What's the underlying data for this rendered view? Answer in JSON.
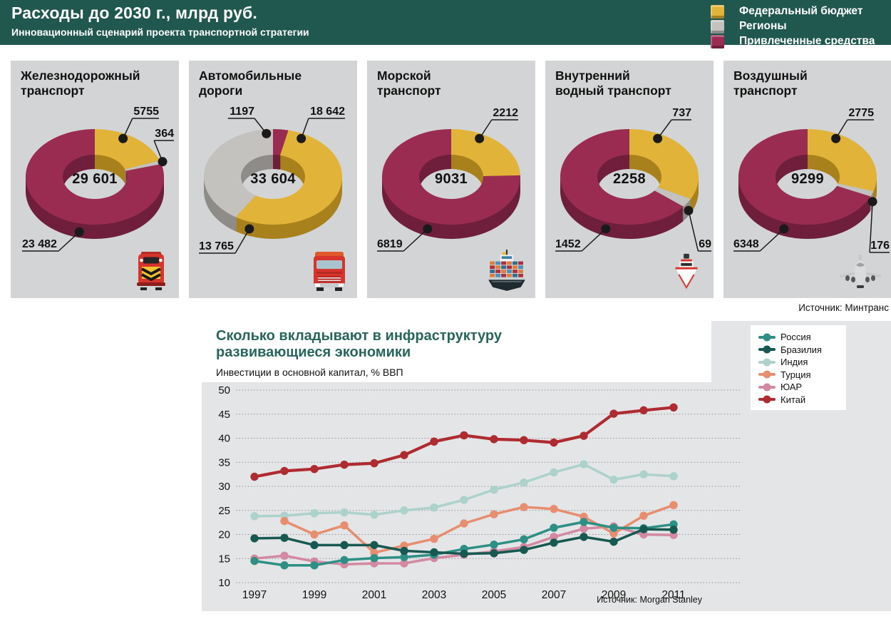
{
  "header": {
    "title": "Расходы до 2030 г., млрд руб.",
    "subtitle": "Инновационный сценарий проекта транспортной стратегии",
    "legend": [
      {
        "key": "federal-budget",
        "label": "Федеральный бюджет",
        "color": "#E2B339"
      },
      {
        "key": "regions",
        "label": "Регионы",
        "color": "#C3C2BE"
      },
      {
        "key": "attracted-funds",
        "label": "Привлеченные средства",
        "color": "#9A2C51"
      }
    ]
  },
  "sources": {
    "top": "Источник: Минтранс",
    "bottom": "Источник: Morgan Stanley"
  },
  "panels": [
    {
      "title_lines": [
        "Железнодорожный",
        "транспорт"
      ],
      "icon": "train-icon",
      "chart": 0
    },
    {
      "title_lines": [
        "Автомобильные",
        "дороги"
      ],
      "icon": "truck-icon",
      "chart": 1
    },
    {
      "title_lines": [
        "Морской",
        "транспорт"
      ],
      "icon": "ship-icon",
      "chart": 2
    },
    {
      "title_lines": [
        "Внутренний",
        "водный транспорт"
      ],
      "icon": "boat-icon",
      "chart": 3
    },
    {
      "title_lines": [
        "Воздушный",
        "транспорт"
      ],
      "icon": "plane-icon",
      "chart": 4
    }
  ],
  "chart": {
    "title_lines": [
      "Сколько вкладывают в инфраструктуру",
      "развивающиеся экономики"
    ]
  },
  "chart_data": [
    {
      "type": "pie",
      "title": "Железнодорожный транспорт",
      "categories": [
        "Федеральный бюджет",
        "Регионы",
        "Привлеченные средства"
      ],
      "slice_keys": [
        "federal-budget",
        "regions",
        "attracted-funds"
      ],
      "values": [
        5755,
        364,
        23482
      ],
      "value_labels": [
        "5755",
        "364",
        "23 482"
      ],
      "center_total": "29 601"
    },
    {
      "type": "pie",
      "title": "Автомобильные дороги",
      "categories": [
        "Привлеченные средства",
        "Федеральный бюджет",
        "Регионы"
      ],
      "slice_keys": [
        "attracted-funds",
        "federal-budget",
        "regions"
      ],
      "values": [
        1197,
        18642,
        13765
      ],
      "value_labels": [
        "1197",
        "18 642",
        "13 765"
      ],
      "center_total": "33 604",
      "note": "slices drawn clockwise from top: Федеральный бюджет, Регионы, Привлеченные средства"
    },
    {
      "type": "pie",
      "title": "Морской транспорт",
      "categories": [
        "Федеральный бюджет",
        "Привлеченные средства"
      ],
      "slice_keys": [
        "federal-budget",
        "attracted-funds"
      ],
      "values": [
        2212,
        6819
      ],
      "value_labels": [
        "2212",
        "6819"
      ],
      "center_total": "9031"
    },
    {
      "type": "pie",
      "title": "Внутренний водный транспорт",
      "categories": [
        "Федеральный бюджет",
        "Регионы",
        "Привлеченные средства"
      ],
      "slice_keys": [
        "federal-budget",
        "regions",
        "attracted-funds"
      ],
      "values": [
        737,
        69,
        1452
      ],
      "value_labels": [
        "737",
        "69",
        "1452"
      ],
      "center_total": "2258"
    },
    {
      "type": "pie",
      "title": "Воздушный транспорт",
      "categories": [
        "Федеральный бюджет",
        "Регионы",
        "Привлеченные средства"
      ],
      "slice_keys": [
        "federal-budget",
        "regions",
        "attracted-funds"
      ],
      "values": [
        2775,
        176,
        6348
      ],
      "value_labels": [
        "2775",
        "176",
        "6348"
      ],
      "center_total": "9299"
    },
    {
      "type": "line",
      "title": "Сколько вкладывают в инфраструктуру развивающиеся экономики",
      "subtitle": "Инвестиции в основной капитал, % ВВП",
      "source": "Источник: Morgan Stanley",
      "x": [
        1997,
        1998,
        1999,
        2000,
        2001,
        2002,
        2003,
        2004,
        2005,
        2006,
        2007,
        2008,
        2009,
        2010,
        2011
      ],
      "x_tick_labels": [
        "1997",
        "1999",
        "2001",
        "2003",
        "2005",
        "2007",
        "2009",
        "2011"
      ],
      "ylim": [
        10,
        50
      ],
      "yticks": [
        10,
        15,
        20,
        25,
        30,
        35,
        40,
        45,
        50
      ],
      "grid": "dotted-horizontal",
      "legend_position": "top-right",
      "series": [
        {
          "key": "russia",
          "name": "Россия",
          "color": "#2E8F85",
          "values": [
            14.5,
            13.6,
            13.6,
            14.7,
            15.1,
            15.3,
            15.8,
            17.0,
            17.9,
            19.0,
            21.4,
            22.6,
            21.4,
            21.3,
            22.1
          ]
        },
        {
          "key": "brazil",
          "name": "Бразилия",
          "color": "#175850",
          "values": [
            19.2,
            19.3,
            17.8,
            17.8,
            17.8,
            16.6,
            16.3,
            16.0,
            16.1,
            16.8,
            18.3,
            19.5,
            18.5,
            21.1,
            21.0
          ]
        },
        {
          "key": "india",
          "name": "Индия",
          "color": "#ACD2CB",
          "values": [
            23.8,
            23.9,
            24.4,
            24.6,
            24.1,
            25.0,
            25.6,
            27.2,
            29.3,
            30.8,
            32.9,
            34.6,
            31.4,
            32.5,
            32.1
          ]
        },
        {
          "key": "turkey",
          "name": "Турция",
          "color": "#E78E71",
          "values": [
            null,
            22.8,
            20.0,
            21.9,
            16.2,
            17.7,
            19.1,
            22.3,
            24.2,
            25.7,
            25.3,
            23.7,
            20.2,
            23.9,
            26.1
          ]
        },
        {
          "key": "south-africa",
          "name": "ЮАР",
          "color": "#D289A1",
          "values": [
            15.0,
            15.6,
            14.4,
            13.8,
            14.0,
            14.0,
            15.1,
            15.8,
            16.5,
            17.4,
            19.5,
            21.2,
            21.7,
            20.0,
            19.9
          ]
        },
        {
          "key": "china",
          "name": "Китай",
          "color": "#AE2B31",
          "values": [
            32.0,
            33.2,
            33.6,
            34.5,
            34.8,
            36.5,
            39.3,
            40.6,
            39.8,
            39.6,
            39.1,
            40.5,
            45.1,
            45.8,
            46.4
          ]
        }
      ]
    }
  ]
}
